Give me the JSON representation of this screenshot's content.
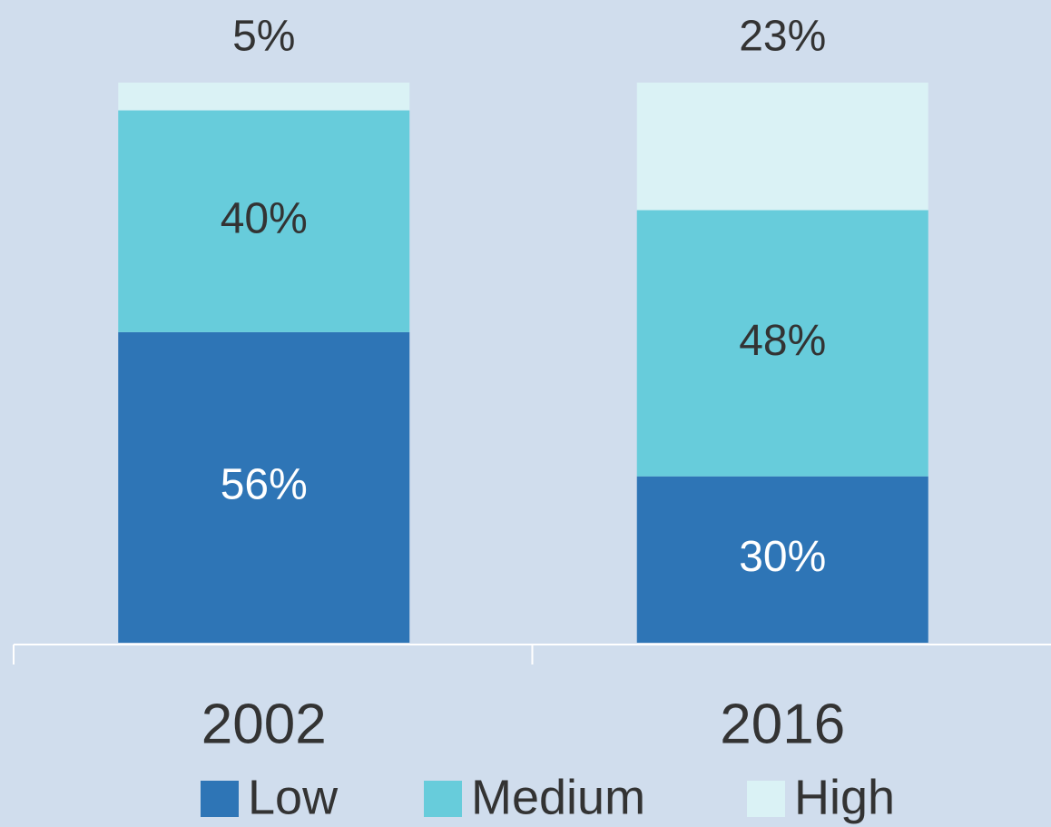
{
  "chart_data": {
    "type": "stacked-bar",
    "categories": [
      "2002",
      "2016"
    ],
    "series": [
      {
        "name": "Low",
        "color": "#2e75b6",
        "values": [
          56,
          30
        ],
        "value_labels": [
          "56%",
          "30%"
        ]
      },
      {
        "name": "Medium",
        "color": "#67ccdb",
        "values": [
          40,
          48
        ],
        "value_labels": [
          "40%",
          "48%"
        ]
      },
      {
        "name": "High",
        "color": "#daf2f5",
        "values": [
          5,
          23
        ],
        "value_labels": [
          "5%",
          "23%"
        ]
      }
    ],
    "legend": "bottom"
  }
}
